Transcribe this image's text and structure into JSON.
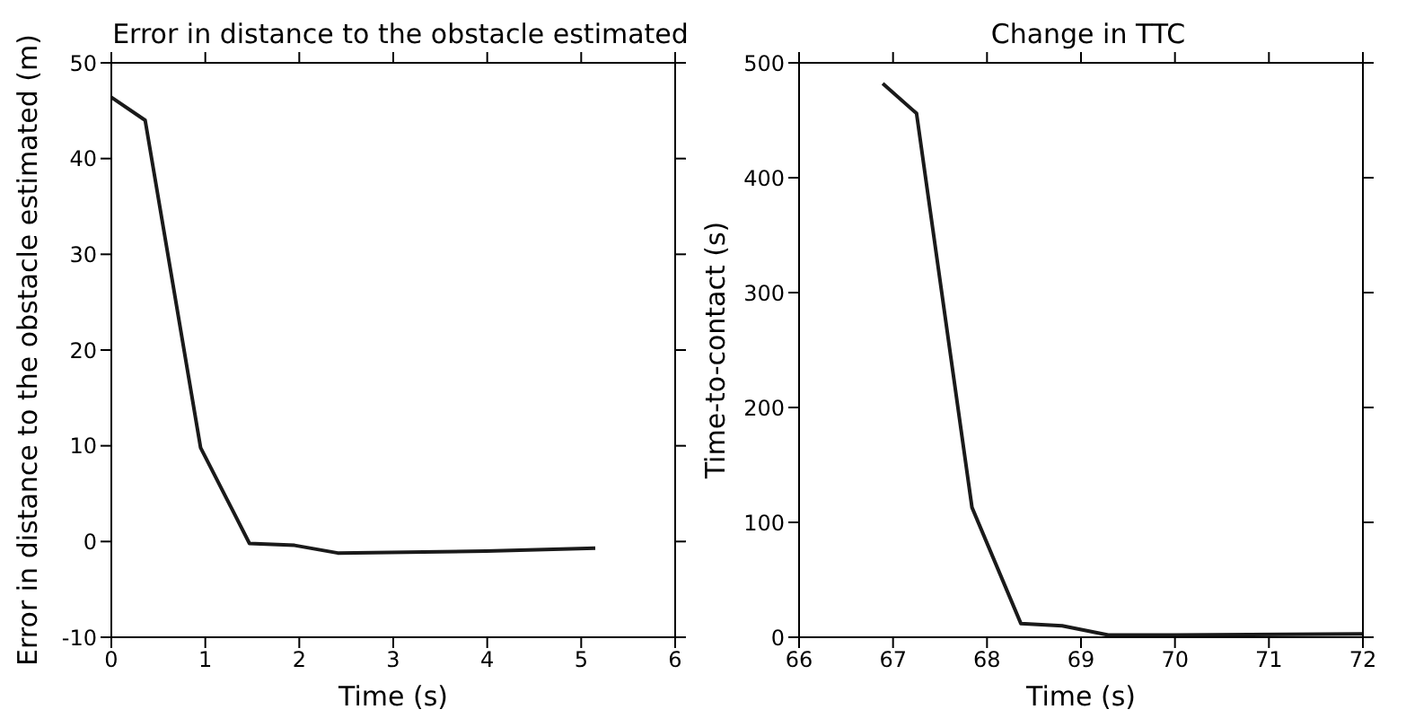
{
  "chart_data": [
    {
      "type": "line",
      "title": "Error in distance to the obstacle estimated",
      "xlabel": "Time (s)",
      "ylabel": "Error in distance to the obstacle estimated (m)",
      "x": [
        0,
        0.36,
        0.95,
        1.47,
        1.95,
        2.41,
        3.99,
        5.15
      ],
      "series": [
        {
          "color": "#1a1a1a",
          "values": [
            46.4,
            44.0,
            9.8,
            -0.2,
            -0.4,
            -1.2,
            -1.0,
            -0.7
          ]
        }
      ],
      "xlim": [
        0,
        6
      ],
      "xticks": [
        0,
        1,
        2,
        3,
        4,
        5,
        6
      ],
      "ylim": [
        -10,
        50
      ],
      "yticks": [
        -10,
        0,
        10,
        20,
        30,
        40,
        50
      ],
      "grid": false,
      "legend": false
    },
    {
      "type": "line",
      "title": "Change in TTC",
      "xlabel": "Time (s)",
      "ylabel": "Time-to-contact (s)",
      "x": [
        66.89,
        67.25,
        67.84,
        68.36,
        68.8,
        69.29,
        70,
        72
      ],
      "series": [
        {
          "color": "#1a1a1a",
          "values": [
            482,
            456,
            113,
            12,
            10,
            2,
            2,
            3
          ]
        }
      ],
      "xlim": [
        66,
        72
      ],
      "xticks": [
        66,
        67,
        68,
        69,
        70,
        71,
        72
      ],
      "ylim": [
        0,
        500
      ],
      "yticks": [
        0,
        100,
        200,
        300,
        400,
        500
      ],
      "grid": false,
      "legend": false
    }
  ]
}
